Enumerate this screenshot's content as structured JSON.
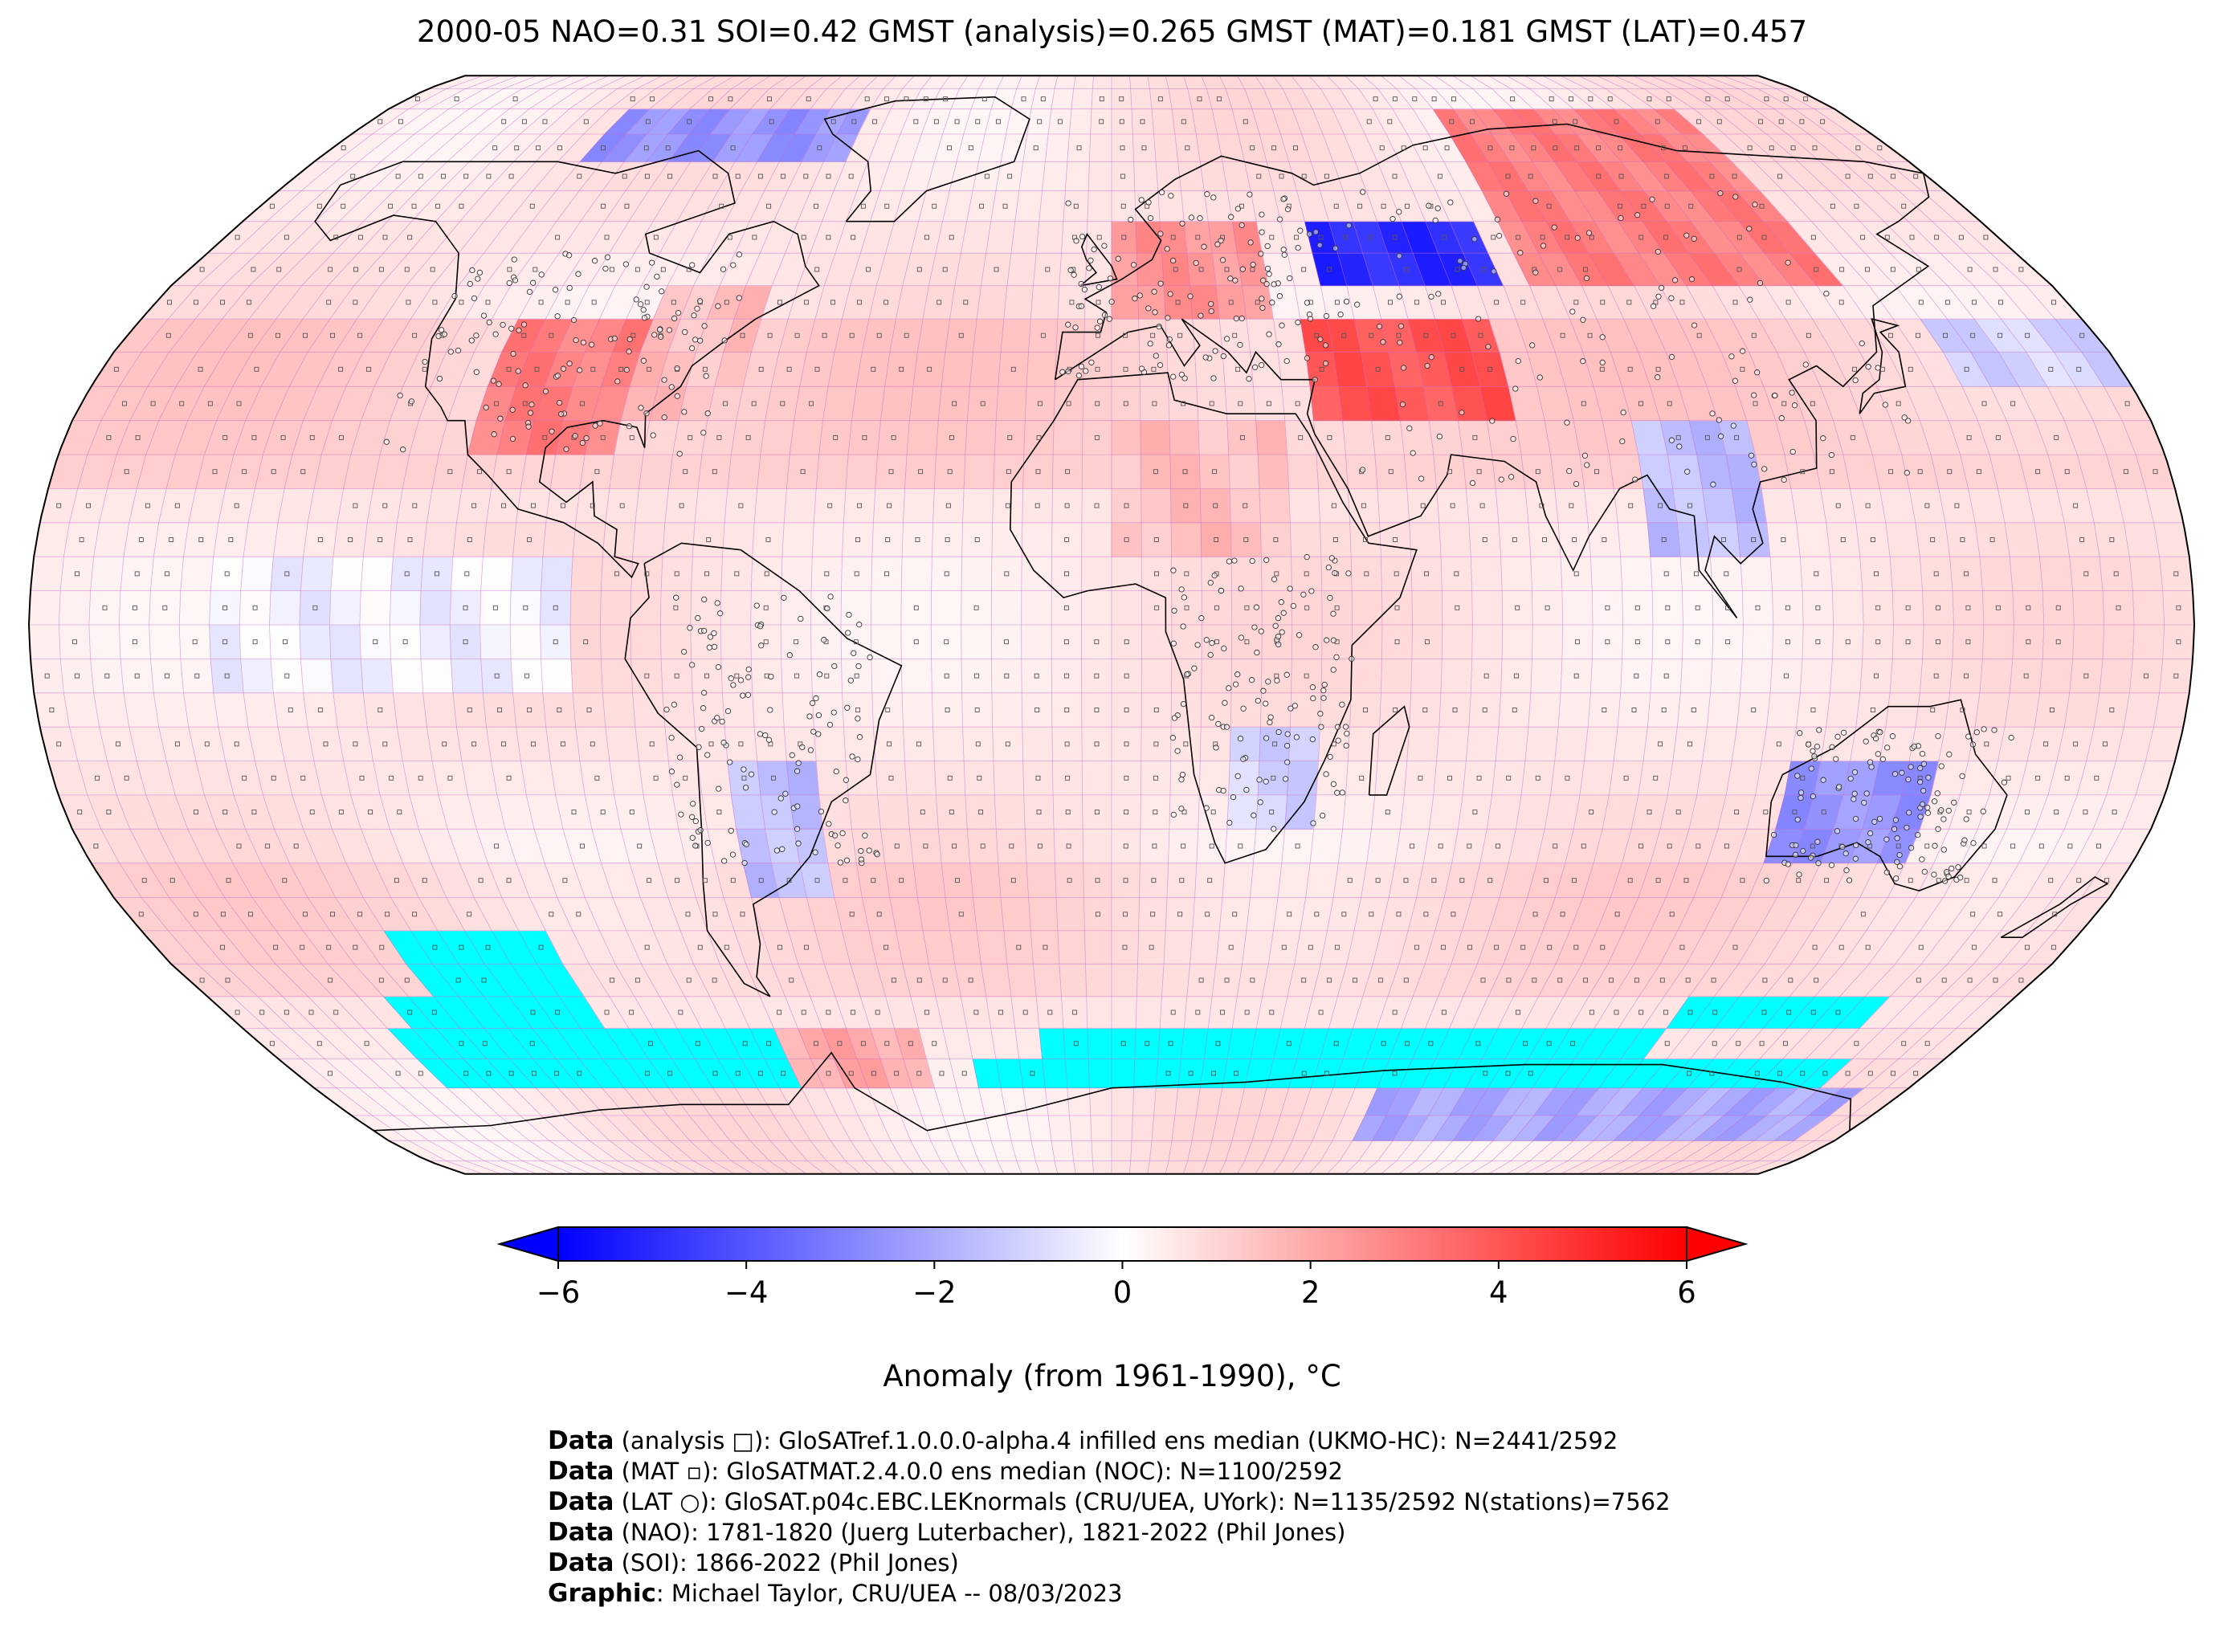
{
  "title": "2000-05 NAO=0.31 SOI=0.42 GMST (analysis)=0.265 GMST (MAT)=0.181 GMST (LAT)=0.457",
  "map": {
    "projection": "Robinson",
    "land_fill": "none",
    "grid_line_color": "#c86ec8",
    "missing_color": "#00ffff",
    "coast_color": "#000000"
  },
  "colorbar": {
    "ticks": [
      "−6",
      "−4",
      "−2",
      "0",
      "2",
      "4",
      "6"
    ],
    "tick_values": [
      -6,
      -4,
      -2,
      0,
      2,
      4,
      6
    ],
    "vmin": -6,
    "vmax": 6,
    "cold_color": "#0000ff",
    "neutral_color": "#ffffff",
    "warm_color": "#ff0000",
    "label": "Anomaly (from 1961-1990), °C"
  },
  "credits": [
    {
      "bold": "Data",
      "text": " (analysis □): GloSATref.1.0.0.0-alpha.4 infilled ens median (UKMO-HC): N=2441/2592"
    },
    {
      "bold": "Data",
      "text": " (MAT ▫): GloSATMAT.2.4.0.0 ens median (NOC): N=1100/2592"
    },
    {
      "bold": "Data",
      "text": " (LAT ○): GloSAT.p04c.EBC.LEKnormals (CRU/UEA, UYork): N=1135/2592 N(stations)=7562"
    },
    {
      "bold": "Data",
      "text": " (NAO): 1781-1820 (Juerg Luterbacher), 1821-2022 (Phil Jones)"
    },
    {
      "bold": "Data",
      "text": " (SOI): 1866-2022 (Phil Jones)"
    },
    {
      "bold": "Graphic",
      "text": ": Michael Taylor, CRU/UEA -- 08/03/2023"
    }
  ],
  "anomaly_regions": [
    {
      "name": "north-america-interior",
      "lon": [
        -110,
        -85
      ],
      "lat": [
        25,
        45
      ],
      "anomaly": 3.0
    },
    {
      "name": "eastern-north-america",
      "lon": [
        -85,
        -65
      ],
      "lat": [
        30,
        48
      ],
      "anomaly": 1.5
    },
    {
      "name": "arctic-canada",
      "lon": [
        -120,
        -60
      ],
      "lat": [
        70,
        82
      ],
      "anomaly": -2.5
    },
    {
      "name": "central-asia-cold",
      "lon": [
        40,
        75
      ],
      "lat": [
        50,
        62
      ],
      "anomaly": -5.0
    },
    {
      "name": "siberia-warm",
      "lon": [
        80,
        140
      ],
      "lat": [
        50,
        78
      ],
      "anomaly": 3.0
    },
    {
      "name": "middle-east-warm",
      "lon": [
        35,
        70
      ],
      "lat": [
        30,
        45
      ],
      "anomaly": 4.0
    },
    {
      "name": "europe-warm",
      "lon": [
        0,
        30
      ],
      "lat": [
        45,
        60
      ],
      "anomaly": 2.5
    },
    {
      "name": "southeast-asia-cool",
      "lon": [
        90,
        110
      ],
      "lat": [
        10,
        28
      ],
      "anomaly": -1.5
    },
    {
      "name": "australia-cool",
      "lon": [
        115,
        140
      ],
      "lat": [
        -35,
        -20
      ],
      "anomaly": -2.5
    },
    {
      "name": "south-america-cool",
      "lon": [
        -65,
        -50
      ],
      "lat": [
        -40,
        -20
      ],
      "anomaly": -1.5
    },
    {
      "name": "southern-africa-cool",
      "lon": [
        20,
        35
      ],
      "lat": [
        -30,
        -15
      ],
      "anomaly": -1.0
    },
    {
      "name": "north-africa-warm",
      "lon": [
        0,
        30
      ],
      "lat": [
        10,
        30
      ],
      "anomaly": 1.5
    },
    {
      "name": "north-pacific-cool",
      "lon": [
        150,
        180
      ],
      "lat": [
        35,
        45
      ],
      "anomaly": -1.0
    },
    {
      "name": "antarctica-cool",
      "lon": [
        60,
        170
      ],
      "lat": [
        -80,
        -68
      ],
      "anomaly": -2.0
    },
    {
      "name": "antarctica-peninsula-warm",
      "lon": [
        -75,
        -40
      ],
      "lat": [
        -72,
        -62
      ],
      "anomaly": 2.0
    },
    {
      "name": "tropical-pacific",
      "lon": [
        -150,
        -90
      ],
      "lat": [
        -10,
        10
      ],
      "anomaly": -0.3
    }
  ],
  "missing_regions": [
    {
      "lon": [
        -135,
        -105
      ],
      "lat": [
        -55,
        -47
      ]
    },
    {
      "lon": [
        -145,
        -105
      ],
      "lat": [
        -60,
        -55
      ]
    },
    {
      "lon": [
        -150,
        -70
      ],
      "lat": [
        -70,
        -60
      ]
    },
    {
      "lon": [
        -15,
        115
      ],
      "lat": [
        -65,
        -60
      ]
    },
    {
      "lon": [
        115,
        155
      ],
      "lat": [
        -60,
        -55
      ]
    },
    {
      "lon": [
        -30,
        160
      ],
      "lat": [
        -70,
        -65
      ]
    }
  ]
}
